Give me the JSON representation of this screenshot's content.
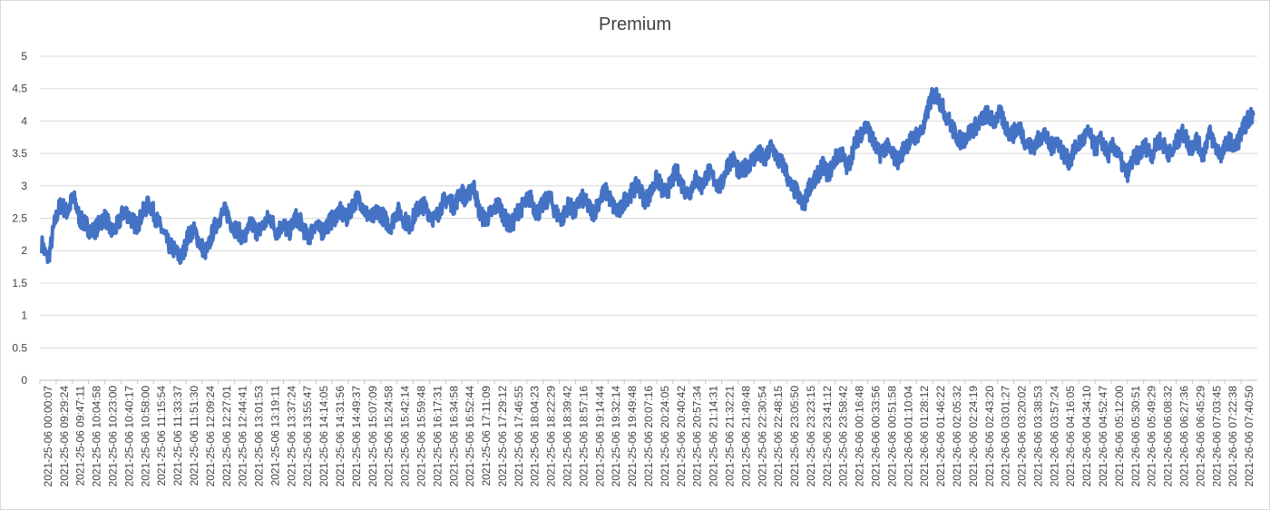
{
  "chart_data": {
    "type": "line",
    "title": "Premium",
    "xlabel": "",
    "ylabel": "",
    "ylim": [
      0,
      5
    ],
    "y_ticks": [
      "0",
      "0.5",
      "1",
      "1.5",
      "2",
      "2.5",
      "3",
      "3.5",
      "4",
      "4.5",
      "5"
    ],
    "grid": "horizontal",
    "legend": "none",
    "series_color": "#4472c4",
    "x_tick_labels": [
      "2021-25-06 00:00:07",
      "2021-25-06 09:29:24",
      "2021-25-06 09:47:11",
      "2021-25-06 10:04:58",
      "2021-25-06 10:23:00",
      "2021-25-06 10:40:17",
      "2021-25-06 10:58:00",
      "2021-25-06 11:15:54",
      "2021-25-06 11:33:37",
      "2021-25-06 11:51:30",
      "2021-25-06 12:09:24",
      "2021-25-06 12:27:01",
      "2021-25-06 12:44:41",
      "2021-25-06 13:01:53",
      "2021-25-06 13:19:11",
      "2021-25-06 13:37:24",
      "2021-25-06 13:55:47",
      "2021-25-06 14:14:05",
      "2021-25-06 14:31:56",
      "2021-25-06 14:49:37",
      "2021-25-06 15:07:09",
      "2021-25-06 15:24:58",
      "2021-25-06 15:42:14",
      "2021-25-06 15:59:48",
      "2021-25-06 16:17:31",
      "2021-25-06 16:34:58",
      "2021-25-06 16:52:44",
      "2021-25-06 17:11:09",
      "2021-25-06 17:29:12",
      "2021-25-06 17:46:55",
      "2021-25-06 18:04:23",
      "2021-25-06 18:22:29",
      "2021-25-06 18:39:42",
      "2021-25-06 18:57:16",
      "2021-25-06 19:14:44",
      "2021-25-06 19:32:14",
      "2021-25-06 19:49:48",
      "2021-25-06 20:07:16",
      "2021-25-06 20:24:05",
      "2021-25-06 20:40:42",
      "2021-25-06 20:57:34",
      "2021-25-06 21:14:31",
      "2021-25-06 21:32:21",
      "2021-25-06 21:49:48",
      "2021-25-06 22:30:54",
      "2021-25-06 22:48:15",
      "2021-25-06 23:05:50",
      "2021-25-06 23:23:15",
      "2021-25-06 23:41:12",
      "2021-25-06 23:58:42",
      "2021-26-06 00:16:48",
      "2021-26-06 00:33:56",
      "2021-26-06 00:51:58",
      "2021-26-06 01:10:04",
      "2021-26-06 01:28:12",
      "2021-26-06 01:46:22",
      "2021-26-06 02:05:32",
      "2021-26-06 02:24:19",
      "2021-26-06 02:43:20",
      "2021-26-06 03:01:27",
      "2021-26-06 03:20:02",
      "2021-26-06 03:38:53",
      "2021-26-06 03:57:24",
      "2021-26-06 04:16:05",
      "2021-26-06 04:34:10",
      "2021-26-06 04:52:47",
      "2021-26-06 05:12:00",
      "2021-26-06 05:30:51",
      "2021-26-06 05:49:29",
      "2021-26-06 06:08:32",
      "2021-26-06 06:27:36",
      "2021-26-06 06:45:29",
      "2021-26-06 07:03:45",
      "2021-26-06 07:22:38",
      "2021-26-06 07:40:50"
    ],
    "series": [
      {
        "values": [
          2.1,
          1.9,
          2.4,
          2.7,
          2.6,
          2.8,
          2.5,
          2.4,
          2.3,
          2.4,
          2.5,
          2.3,
          2.4,
          2.6,
          2.5,
          2.4,
          2.6,
          2.7,
          2.5,
          2.3,
          2.1,
          2.0,
          1.9,
          2.2,
          2.3,
          2.1,
          2.0,
          2.3,
          2.5,
          2.6,
          2.4,
          2.3,
          2.2,
          2.4,
          2.3,
          2.4,
          2.5,
          2.3,
          2.4,
          2.3,
          2.5,
          2.4,
          2.2,
          2.4,
          2.3,
          2.4,
          2.5,
          2.6,
          2.5,
          2.7,
          2.8,
          2.6,
          2.5,
          2.6,
          2.5,
          2.4,
          2.6,
          2.5,
          2.4,
          2.6,
          2.7,
          2.6,
          2.5,
          2.7,
          2.8,
          2.7,
          2.9,
          2.8,
          3.0,
          2.6,
          2.5,
          2.6,
          2.7,
          2.5,
          2.4,
          2.6,
          2.7,
          2.8,
          2.6,
          2.7,
          2.8,
          2.6,
          2.5,
          2.7,
          2.6,
          2.8,
          2.7,
          2.6,
          2.8,
          2.9,
          2.7,
          2.6,
          2.8,
          2.9,
          3.0,
          2.8,
          2.9,
          3.1,
          2.9,
          3.0,
          3.2,
          3.0,
          2.9,
          3.1,
          3.0,
          3.2,
          3.1,
          3.0,
          3.3,
          3.4,
          3.2,
          3.3,
          3.4,
          3.5,
          3.4,
          3.6,
          3.4,
          3.3,
          3.0,
          2.9,
          2.7,
          3.0,
          3.1,
          3.3,
          3.2,
          3.4,
          3.5,
          3.3,
          3.6,
          3.8,
          3.9,
          3.7,
          3.5,
          3.6,
          3.5,
          3.4,
          3.6,
          3.7,
          3.8,
          3.9,
          4.3,
          4.4,
          4.2,
          4.0,
          3.8,
          3.7,
          3.8,
          3.9,
          4.0,
          4.1,
          4.0,
          4.1,
          3.9,
          3.8,
          3.9,
          3.7,
          3.6,
          3.7,
          3.8,
          3.6,
          3.7,
          3.5,
          3.4,
          3.6,
          3.7,
          3.8,
          3.6,
          3.7,
          3.5,
          3.6,
          3.4,
          3.2,
          3.4,
          3.5,
          3.6,
          3.5,
          3.7,
          3.6,
          3.5,
          3.7,
          3.8,
          3.6,
          3.7,
          3.5,
          3.8,
          3.6,
          3.5,
          3.7,
          3.6,
          3.8,
          4.0,
          4.1
        ]
      }
    ]
  }
}
